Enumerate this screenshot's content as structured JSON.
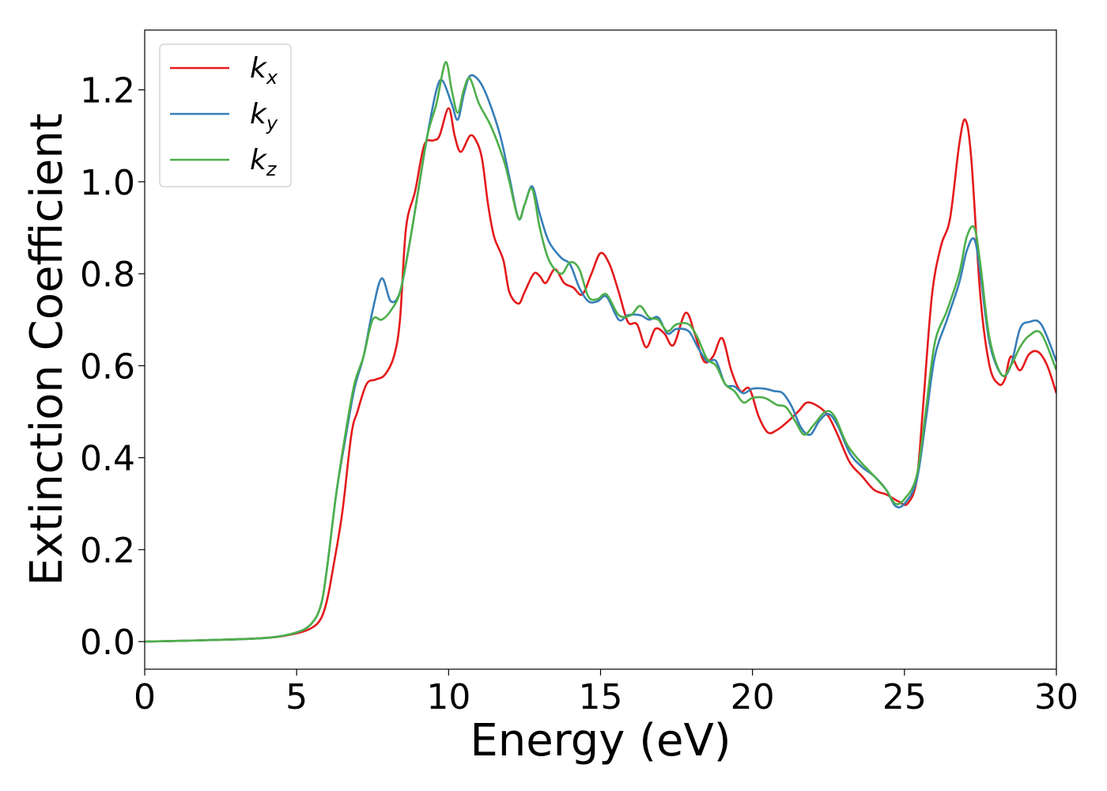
{
  "chart_data": {
    "type": "line",
    "xlabel": "Energy (eV)",
    "ylabel": "Extinction Coefficient",
    "xlim": [
      0,
      30
    ],
    "ylim": [
      -0.06,
      1.33
    ],
    "xticks": [
      0,
      5,
      10,
      15,
      20,
      25,
      30
    ],
    "xtick_labels": [
      "0",
      "5",
      "10",
      "15",
      "20",
      "25",
      "30"
    ],
    "yticks": [
      0.0,
      0.2,
      0.4,
      0.6,
      0.8,
      1.0,
      1.2
    ],
    "ytick_labels": [
      "0.0",
      "0.2",
      "0.4",
      "0.6",
      "0.8",
      "1.0",
      "1.2"
    ],
    "grid": false,
    "legend_position": "top-left",
    "series": [
      {
        "name": "k",
        "subscript": "x",
        "color": "#e41a1c",
        "points": [
          [
            0,
            0
          ],
          [
            2,
            0.003
          ],
          [
            4,
            0.008
          ],
          [
            5,
            0.018
          ],
          [
            5.5,
            0.03
          ],
          [
            5.8,
            0.05
          ],
          [
            6,
            0.09
          ],
          [
            6.2,
            0.16
          ],
          [
            6.5,
            0.28
          ],
          [
            6.8,
            0.45
          ],
          [
            7,
            0.5
          ],
          [
            7.3,
            0.56
          ],
          [
            7.6,
            0.57
          ],
          [
            7.9,
            0.58
          ],
          [
            8.2,
            0.62
          ],
          [
            8.4,
            0.7
          ],
          [
            8.6,
            0.9
          ],
          [
            8.9,
            0.98
          ],
          [
            9.2,
            1.08
          ],
          [
            9.5,
            1.09
          ],
          [
            9.7,
            1.1
          ],
          [
            10,
            1.16
          ],
          [
            10.2,
            1.1
          ],
          [
            10.4,
            1.065
          ],
          [
            10.7,
            1.1
          ],
          [
            10.9,
            1.09
          ],
          [
            11.1,
            1.05
          ],
          [
            11.3,
            0.95
          ],
          [
            11.5,
            0.88
          ],
          [
            11.8,
            0.83
          ],
          [
            12,
            0.76
          ],
          [
            12.3,
            0.735
          ],
          [
            12.5,
            0.76
          ],
          [
            12.8,
            0.8
          ],
          [
            13,
            0.795
          ],
          [
            13.2,
            0.78
          ],
          [
            13.5,
            0.81
          ],
          [
            13.8,
            0.78
          ],
          [
            14.1,
            0.77
          ],
          [
            14.4,
            0.755
          ],
          [
            14.7,
            0.8
          ],
          [
            15,
            0.845
          ],
          [
            15.3,
            0.82
          ],
          [
            15.6,
            0.76
          ],
          [
            15.9,
            0.695
          ],
          [
            16.2,
            0.69
          ],
          [
            16.5,
            0.64
          ],
          [
            16.8,
            0.68
          ],
          [
            17.1,
            0.67
          ],
          [
            17.4,
            0.645
          ],
          [
            17.8,
            0.715
          ],
          [
            18.1,
            0.67
          ],
          [
            18.4,
            0.61
          ],
          [
            18.7,
            0.62
          ],
          [
            19,
            0.66
          ],
          [
            19.3,
            0.59
          ],
          [
            19.6,
            0.545
          ],
          [
            19.9,
            0.55
          ],
          [
            20.2,
            0.49
          ],
          [
            20.5,
            0.455
          ],
          [
            20.8,
            0.46
          ],
          [
            21.1,
            0.475
          ],
          [
            21.5,
            0.5
          ],
          [
            21.8,
            0.52
          ],
          [
            22.2,
            0.51
          ],
          [
            22.5,
            0.49
          ],
          [
            22.8,
            0.45
          ],
          [
            23.2,
            0.39
          ],
          [
            23.6,
            0.36
          ],
          [
            24,
            0.33
          ],
          [
            24.4,
            0.32
          ],
          [
            24.8,
            0.305
          ],
          [
            25.1,
            0.3
          ],
          [
            25.4,
            0.35
          ],
          [
            25.6,
            0.5
          ],
          [
            25.9,
            0.75
          ],
          [
            26.2,
            0.86
          ],
          [
            26.5,
            0.92
          ],
          [
            26.8,
            1.08
          ],
          [
            27,
            1.135
          ],
          [
            27.2,
            1.05
          ],
          [
            27.5,
            0.75
          ],
          [
            27.8,
            0.6
          ],
          [
            28.1,
            0.56
          ],
          [
            28.3,
            0.57
          ],
          [
            28.5,
            0.62
          ],
          [
            28.8,
            0.59
          ],
          [
            29.1,
            0.625
          ],
          [
            29.4,
            0.63
          ],
          [
            29.7,
            0.6
          ],
          [
            30,
            0.54
          ]
        ]
      },
      {
        "name": "k",
        "subscript": "y",
        "color": "#377eb8",
        "points": [
          [
            0,
            0
          ],
          [
            2,
            0.003
          ],
          [
            4,
            0.008
          ],
          [
            5,
            0.02
          ],
          [
            5.5,
            0.04
          ],
          [
            5.8,
            0.08
          ],
          [
            6,
            0.16
          ],
          [
            6.3,
            0.32
          ],
          [
            6.6,
            0.44
          ],
          [
            6.9,
            0.55
          ],
          [
            7.2,
            0.62
          ],
          [
            7.5,
            0.72
          ],
          [
            7.8,
            0.79
          ],
          [
            8.1,
            0.74
          ],
          [
            8.4,
            0.76
          ],
          [
            8.7,
            0.86
          ],
          [
            9,
            0.98
          ],
          [
            9.3,
            1.1
          ],
          [
            9.6,
            1.2
          ],
          [
            9.8,
            1.22
          ],
          [
            10.1,
            1.17
          ],
          [
            10.3,
            1.135
          ],
          [
            10.5,
            1.19
          ],
          [
            10.7,
            1.23
          ],
          [
            11,
            1.22
          ],
          [
            11.3,
            1.18
          ],
          [
            11.7,
            1.1
          ],
          [
            12,
            1.01
          ],
          [
            12.3,
            0.92
          ],
          [
            12.5,
            0.95
          ],
          [
            12.75,
            0.99
          ],
          [
            13,
            0.93
          ],
          [
            13.3,
            0.87
          ],
          [
            13.7,
            0.835
          ],
          [
            14,
            0.82
          ],
          [
            14.3,
            0.77
          ],
          [
            14.6,
            0.74
          ],
          [
            14.9,
            0.74
          ],
          [
            15.2,
            0.75
          ],
          [
            15.6,
            0.7
          ],
          [
            15.9,
            0.71
          ],
          [
            16.3,
            0.71
          ],
          [
            16.6,
            0.7
          ],
          [
            16.9,
            0.705
          ],
          [
            17.2,
            0.67
          ],
          [
            17.5,
            0.68
          ],
          [
            17.9,
            0.675
          ],
          [
            18.2,
            0.64
          ],
          [
            18.5,
            0.61
          ],
          [
            18.8,
            0.61
          ],
          [
            19.1,
            0.56
          ],
          [
            19.4,
            0.555
          ],
          [
            19.7,
            0.54
          ],
          [
            20,
            0.55
          ],
          [
            20.4,
            0.55
          ],
          [
            20.7,
            0.545
          ],
          [
            21,
            0.54
          ],
          [
            21.3,
            0.51
          ],
          [
            21.6,
            0.465
          ],
          [
            21.9,
            0.45
          ],
          [
            22.2,
            0.48
          ],
          [
            22.5,
            0.495
          ],
          [
            22.8,
            0.47
          ],
          [
            23.2,
            0.41
          ],
          [
            23.6,
            0.38
          ],
          [
            24,
            0.36
          ],
          [
            24.4,
            0.33
          ],
          [
            24.7,
            0.295
          ],
          [
            25,
            0.3
          ],
          [
            25.4,
            0.35
          ],
          [
            25.7,
            0.48
          ],
          [
            26,
            0.62
          ],
          [
            26.4,
            0.7
          ],
          [
            26.8,
            0.78
          ],
          [
            27.05,
            0.85
          ],
          [
            27.3,
            0.875
          ],
          [
            27.5,
            0.8
          ],
          [
            27.8,
            0.65
          ],
          [
            28.2,
            0.58
          ],
          [
            28.5,
            0.6
          ],
          [
            28.8,
            0.68
          ],
          [
            29.1,
            0.695
          ],
          [
            29.5,
            0.69
          ],
          [
            30,
            0.61
          ]
        ]
      },
      {
        "name": "k",
        "subscript": "z",
        "color": "#4daf4a",
        "points": [
          [
            0,
            0
          ],
          [
            2,
            0.003
          ],
          [
            4,
            0.008
          ],
          [
            5,
            0.02
          ],
          [
            5.5,
            0.04
          ],
          [
            5.8,
            0.08
          ],
          [
            6,
            0.16
          ],
          [
            6.3,
            0.32
          ],
          [
            6.6,
            0.45
          ],
          [
            6.9,
            0.56
          ],
          [
            7.2,
            0.62
          ],
          [
            7.5,
            0.7
          ],
          [
            7.8,
            0.7
          ],
          [
            8.1,
            0.72
          ],
          [
            8.4,
            0.76
          ],
          [
            8.7,
            0.86
          ],
          [
            9,
            0.98
          ],
          [
            9.3,
            1.1
          ],
          [
            9.6,
            1.17
          ],
          [
            9.9,
            1.26
          ],
          [
            10.1,
            1.2
          ],
          [
            10.3,
            1.15
          ],
          [
            10.5,
            1.2
          ],
          [
            10.7,
            1.225
          ],
          [
            11,
            1.17
          ],
          [
            11.4,
            1.12
          ],
          [
            11.8,
            1.05
          ],
          [
            12,
            1.0
          ],
          [
            12.3,
            0.92
          ],
          [
            12.5,
            0.95
          ],
          [
            12.75,
            0.985
          ],
          [
            13,
            0.9
          ],
          [
            13.3,
            0.83
          ],
          [
            13.7,
            0.8
          ],
          [
            14,
            0.825
          ],
          [
            14.3,
            0.81
          ],
          [
            14.6,
            0.75
          ],
          [
            14.9,
            0.745
          ],
          [
            15.2,
            0.755
          ],
          [
            15.6,
            0.71
          ],
          [
            16,
            0.71
          ],
          [
            16.3,
            0.73
          ],
          [
            16.6,
            0.705
          ],
          [
            16.9,
            0.7
          ],
          [
            17.2,
            0.675
          ],
          [
            17.5,
            0.69
          ],
          [
            17.9,
            0.69
          ],
          [
            18.2,
            0.66
          ],
          [
            18.5,
            0.615
          ],
          [
            18.8,
            0.6
          ],
          [
            19.1,
            0.56
          ],
          [
            19.4,
            0.545
          ],
          [
            19.7,
            0.52
          ],
          [
            20,
            0.53
          ],
          [
            20.4,
            0.53
          ],
          [
            20.8,
            0.515
          ],
          [
            21.1,
            0.51
          ],
          [
            21.4,
            0.48
          ],
          [
            21.7,
            0.45
          ],
          [
            22,
            0.47
          ],
          [
            22.4,
            0.5
          ],
          [
            22.7,
            0.49
          ],
          [
            23.1,
            0.43
          ],
          [
            23.5,
            0.395
          ],
          [
            24,
            0.36
          ],
          [
            24.4,
            0.33
          ],
          [
            24.7,
            0.3
          ],
          [
            25,
            0.31
          ],
          [
            25.4,
            0.36
          ],
          [
            25.7,
            0.5
          ],
          [
            26,
            0.65
          ],
          [
            26.4,
            0.72
          ],
          [
            26.8,
            0.8
          ],
          [
            27.05,
            0.88
          ],
          [
            27.3,
            0.9
          ],
          [
            27.5,
            0.82
          ],
          [
            27.8,
            0.66
          ],
          [
            28.2,
            0.58
          ],
          [
            28.5,
            0.6
          ],
          [
            28.8,
            0.64
          ],
          [
            29.1,
            0.665
          ],
          [
            29.5,
            0.67
          ],
          [
            30,
            0.59
          ]
        ]
      }
    ]
  }
}
